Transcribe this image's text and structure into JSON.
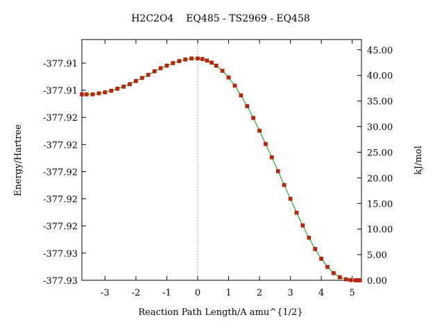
{
  "chart_data": {
    "type": "line",
    "title": "H2C2O4    EQ485 - TS2969 - EQ458",
    "xlabel": "Reaction Path Length/A amu^{1/2}",
    "ylabel": "Energy/Hartree",
    "y2label": "kJ/mol",
    "xlim": [
      -3.75,
      5.3
    ],
    "ylim_kj": [
      0,
      47
    ],
    "x_ticks": [
      -3,
      -2,
      -1,
      0,
      1,
      2,
      3,
      4,
      5
    ],
    "x_tick_labels": [
      "-3",
      "-2",
      "-1",
      "0",
      "1",
      "2",
      "3",
      "4",
      "5"
    ],
    "y_left_ticks_kj": [
      0,
      5.3,
      10.6,
      15.9,
      21.2,
      26.5,
      31.8,
      37.1,
      42.4
    ],
    "y_left_tick_labels": [
      "-377.93",
      "-377.93",
      "-377.92",
      "-377.92",
      "-377.92",
      "-377.92",
      "-377.92",
      "-377.91",
      "-377.91"
    ],
    "y_right_ticks": [
      0,
      5,
      10,
      15,
      20,
      25,
      30,
      35,
      40,
      45
    ],
    "y_right_tick_labels": [
      "0.00",
      "5.00",
      "10.00",
      "15.00",
      "20.00",
      "25.00",
      "30.00",
      "35.00",
      "40.00",
      "45.00"
    ],
    "ts_marker_x": 0,
    "grid": false,
    "line_color": "#00a000",
    "marker_color": "#cc2200",
    "series": [
      {
        "x": [
          -3.75,
          -3.6,
          -3.4,
          -3.2,
          -3.0,
          -2.8,
          -2.6,
          -2.4,
          -2.2,
          -2.0,
          -1.8,
          -1.6,
          -1.4,
          -1.2,
          -1.0,
          -0.8,
          -0.6,
          -0.4,
          -0.2,
          0.0,
          0.15,
          0.3,
          0.45,
          0.6,
          0.8,
          1.0,
          1.2,
          1.4,
          1.6,
          1.8,
          2.0,
          2.2,
          2.4,
          2.6,
          2.8,
          3.0,
          3.2,
          3.4,
          3.6,
          3.8,
          4.0,
          4.2,
          4.4,
          4.6,
          4.8,
          4.95,
          5.1,
          5.2,
          5.25
        ],
        "y": [
          36.3,
          36.3,
          36.3,
          36.5,
          36.7,
          37.0,
          37.4,
          37.8,
          38.3,
          38.9,
          39.5,
          40.1,
          40.8,
          41.4,
          41.9,
          42.4,
          42.8,
          43.1,
          43.3,
          43.3,
          43.2,
          42.9,
          42.5,
          41.9,
          40.9,
          39.6,
          38.0,
          36.1,
          34.0,
          31.7,
          29.2,
          26.6,
          24.0,
          21.3,
          18.6,
          15.9,
          13.2,
          10.7,
          8.3,
          6.1,
          4.2,
          2.6,
          1.4,
          0.6,
          0.2,
          0.05,
          0.0,
          0.0,
          0.0
        ]
      }
    ]
  }
}
